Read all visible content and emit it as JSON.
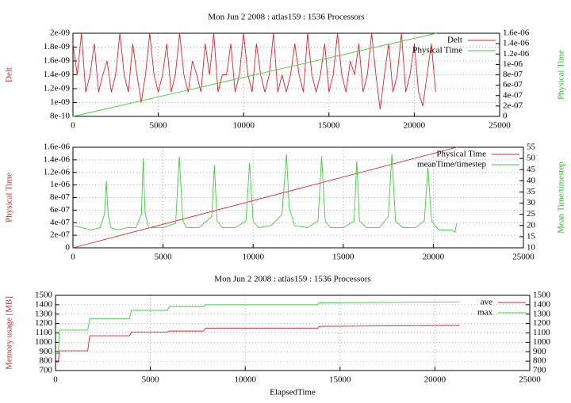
{
  "chart_data": [
    {
      "type": "line",
      "title": "Mon Jun 2 2008 : atlas159 : 1536 Processors",
      "ylabel": "Delt",
      "y2label": "Physical Time",
      "xlim": [
        0,
        25000
      ],
      "xticks": [
        0,
        5000,
        10000,
        15000,
        20000,
        25000
      ],
      "ylim": [
        8e-10,
        2e-09
      ],
      "yticks": [
        {
          "value": 8e-10,
          "label": "8e-10"
        },
        {
          "value": 1e-09,
          "label": "1e-09"
        },
        {
          "value": 1.2e-09,
          "label": "1.2e-09"
        },
        {
          "value": 1.4e-09,
          "label": "1.4e-09"
        },
        {
          "value": 1.6e-09,
          "label": "1.6e-09"
        },
        {
          "value": 1.8e-09,
          "label": "1.8e-09"
        },
        {
          "value": 2e-09,
          "label": "2e-09"
        }
      ],
      "y2lim": [
        0,
        1.6e-06
      ],
      "y2ticks": [
        0,
        {
          "value": 2e-07,
          "label": "2e-07"
        },
        {
          "value": 4e-07,
          "label": "4e-07"
        },
        {
          "value": 6e-07,
          "label": "6e-07"
        },
        {
          "value": 8e-07,
          "label": "8e-07"
        },
        {
          "value": 1e-06,
          "label": "1e-06"
        },
        {
          "value": 1.2e-06,
          "label": "1.2e-06"
        },
        {
          "value": 1.4e-06,
          "label": "1.4e-06"
        },
        {
          "value": 1.6e-06,
          "label": "1.6e-06"
        }
      ],
      "grid": true,
      "legend": "top-right",
      "series": [
        {
          "name": "Delt",
          "color": "#e0202a",
          "x": [
            0,
            250,
            500,
            750,
            1000,
            1250,
            1500,
            1750,
            2000,
            2250,
            2500,
            2750,
            3000,
            3250,
            3500,
            3750,
            4000,
            4250,
            4500,
            4750,
            5000,
            5250,
            5500,
            5750,
            6000,
            6250,
            6500,
            6750,
            7000,
            7250,
            7500,
            7750,
            8000,
            8250,
            8500,
            8750,
            9000,
            9250,
            9500,
            9750,
            10000,
            10250,
            10500,
            10750,
            11000,
            11250,
            11500,
            11750,
            12000,
            12250,
            12500,
            12750,
            13000,
            13250,
            13500,
            13750,
            14000,
            14250,
            14500,
            14750,
            15000,
            15250,
            15500,
            15750,
            16000,
            16250,
            16500,
            16750,
            17000,
            17250,
            17500,
            17750,
            18000,
            18250,
            18500,
            18750,
            19000,
            19250,
            19500,
            19750,
            20000,
            20250,
            20500,
            20750,
            21000,
            21250
          ],
          "values": [
            1.85e-09,
            1.4e-09,
            2e-09,
            1.15e-09,
            1.4e-09,
            1.85e-09,
            1.15e-09,
            1.4e-09,
            1.6e-09,
            1.15e-09,
            1.4e-09,
            2e-09,
            1.4e-09,
            1.15e-09,
            1.85e-09,
            1.4e-09,
            1e-09,
            1.4e-09,
            2e-09,
            1.4e-09,
            1.15e-09,
            1.4e-09,
            1.85e-09,
            1.15e-09,
            1.4e-09,
            2e-09,
            1.4e-09,
            1.15e-09,
            1.6e-09,
            1.4e-09,
            1.15e-09,
            1.85e-09,
            1.4e-09,
            2e-09,
            1.15e-09,
            1.4e-09,
            1.4e-09,
            1.85e-09,
            1.15e-09,
            1.4e-09,
            2e-09,
            1.4e-09,
            1.15e-09,
            1.85e-09,
            1.4e-09,
            1.15e-09,
            1.4e-09,
            2e-09,
            1.15e-09,
            1.4e-09,
            1.15e-09,
            1.4e-09,
            1.85e-09,
            1.4e-09,
            1.15e-09,
            2e-09,
            1.4e-09,
            1.15e-09,
            1.4e-09,
            1.85e-09,
            1.15e-09,
            1.4e-09,
            2e-09,
            1.4e-09,
            1.15e-09,
            1.6e-09,
            1.4e-09,
            1.85e-09,
            1.15e-09,
            1.4e-09,
            2e-09,
            1.4e-09,
            9e-10,
            1.4e-09,
            1.85e-09,
            1.15e-09,
            1.4e-09,
            2e-09,
            1.15e-09,
            1.4e-09,
            1.85e-09,
            1.15e-09,
            9.5e-10,
            1.4e-09,
            1.85e-09,
            1.15e-09
          ]
        },
        {
          "name": "Physical Time",
          "color": "#3ccf3c",
          "axis": "y2",
          "x": [
            0,
            21300
          ],
          "values": [
            0,
            1.6e-06
          ]
        }
      ]
    },
    {
      "type": "line",
      "ylabel": "Physical Time",
      "y2label": "Mean Time/timestep",
      "xlim": [
        0,
        25000
      ],
      "xticks": [
        0,
        5000,
        10000,
        15000,
        20000,
        25000
      ],
      "ylim": [
        0,
        1.6e-06
      ],
      "yticks": [
        0,
        {
          "value": 2e-07,
          "label": "2e-07"
        },
        {
          "value": 4e-07,
          "label": "4e-07"
        },
        {
          "value": 6e-07,
          "label": "6e-07"
        },
        {
          "value": 8e-07,
          "label": "8e-07"
        },
        {
          "value": 1e-06,
          "label": "1e-06"
        },
        {
          "value": 1.2e-06,
          "label": "1.2e-06"
        },
        {
          "value": 1.4e-06,
          "label": "1.4e-06"
        },
        {
          "value": 1.6e-06,
          "label": "1.6e-06"
        }
      ],
      "y2lim": [
        10,
        55
      ],
      "y2ticks": [
        10,
        15,
        20,
        25,
        30,
        35,
        40,
        45,
        50,
        55
      ],
      "grid": true,
      "legend": "top-right",
      "series": [
        {
          "name": "Physical Time",
          "color": "#e0202a",
          "x": [
            0,
            21300
          ],
          "values": [
            0,
            1.6e-06
          ]
        },
        {
          "name": "meanTime/timestep",
          "color": "#3ccf3c",
          "axis": "y2",
          "x": [
            0,
            500,
            1000,
            1500,
            1750,
            1850,
            1950,
            2100,
            2500,
            3000,
            3500,
            3800,
            3900,
            4000,
            4200,
            5000,
            5700,
            5900,
            6100,
            6300,
            7000,
            7700,
            7850,
            8000,
            8300,
            9000,
            9600,
            9800,
            10000,
            10300,
            11000,
            11600,
            11850,
            12000,
            12300,
            13000,
            13600,
            13800,
            14000,
            14300,
            15000,
            15600,
            15750,
            15900,
            16300,
            17000,
            17500,
            17700,
            17900,
            18300,
            19000,
            19500,
            19700,
            19900,
            20300,
            21000,
            21200,
            21300
          ],
          "values": [
            20,
            19,
            18,
            19,
            25,
            40,
            25,
            19,
            18,
            19,
            19,
            25,
            50,
            26,
            19,
            19,
            21,
            51,
            22,
            19,
            19,
            24,
            47,
            22,
            19,
            19,
            22,
            48,
            22,
            19,
            20,
            25,
            52,
            28,
            20,
            19,
            22,
            51,
            22,
            19,
            19,
            22,
            49,
            22,
            19,
            19,
            24,
            52,
            22,
            19,
            19,
            22,
            46,
            22,
            18,
            18,
            17,
            21
          ]
        }
      ]
    },
    {
      "type": "line",
      "title": "Mon Jun 2 2008 : atlas159 : 1536 Processors",
      "xlabel": "ElapsedTime",
      "ylabel": "Memory usage [MB]",
      "xlim": [
        0,
        25000
      ],
      "xticks": [
        0,
        5000,
        10000,
        15000,
        20000,
        25000
      ],
      "ylim": [
        700,
        1500
      ],
      "yticks": [
        700,
        800,
        900,
        1000,
        1100,
        1200,
        1300,
        1400,
        1500
      ],
      "y2lim": [
        700,
        1500
      ],
      "y2ticks": [
        700,
        800,
        900,
        1000,
        1100,
        1200,
        1300,
        1400,
        1500
      ],
      "grid": true,
      "legend": "top-right",
      "series": [
        {
          "name": "ave",
          "color": "#e0202a",
          "x": [
            0,
            150,
            200,
            1700,
            1800,
            3900,
            4000,
            5900,
            6000,
            7800,
            7900,
            13800,
            13900,
            21300
          ],
          "values": [
            790,
            790,
            910,
            910,
            1070,
            1070,
            1110,
            1110,
            1120,
            1120,
            1150,
            1150,
            1170,
            1180
          ]
        },
        {
          "name": "max",
          "color": "#3ccf3c",
          "x": [
            0,
            150,
            200,
            1700,
            1800,
            3900,
            4000,
            5900,
            6000,
            7800,
            7900,
            13800,
            13900,
            21300
          ],
          "values": [
            880,
            880,
            1130,
            1130,
            1250,
            1250,
            1340,
            1340,
            1380,
            1380,
            1400,
            1400,
            1420,
            1430
          ]
        }
      ]
    }
  ]
}
